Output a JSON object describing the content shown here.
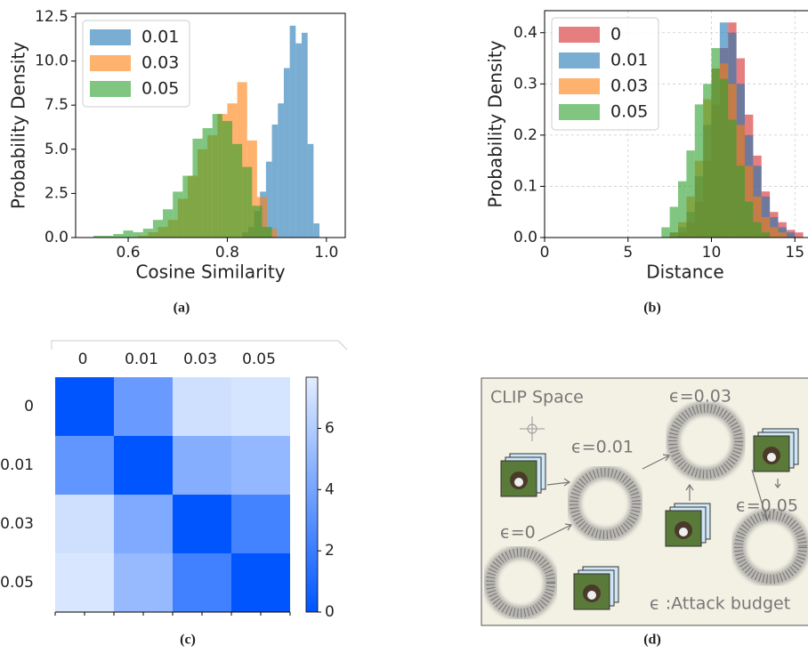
{
  "chart_data": [
    {
      "type": "histogram",
      "caption": "(a)",
      "xlabel": "Cosine Similarity",
      "ylabel": "Probability Density",
      "xlim": [
        0.494,
        1.038
      ],
      "ylim": [
        0,
        12.7
      ],
      "xticks": [
        0.6,
        0.8,
        {
          "value": 1.0,
          "label": "1.0"
        }
      ],
      "yticks": [
        {
          "value": 0,
          "label": "0.0"
        },
        2.5,
        {
          "value": 5,
          "label": "5.0"
        },
        7.5,
        {
          "value": 10,
          "label": "10.0"
        },
        12.5
      ],
      "grid": false,
      "legend": "upper left",
      "opacity": 0.6,
      "series": [
        {
          "name": "0.01",
          "color": "#1f77b4",
          "bins": [
            0.83,
            0.842,
            0.854,
            0.866,
            0.878,
            0.89,
            0.902,
            0.914,
            0.926,
            0.938,
            0.95,
            0.962,
            0.974,
            0.986
          ],
          "values": [
            0.3,
            0.6,
            1.5,
            2.6,
            4.3,
            6.4,
            7.6,
            9.6,
            12.0,
            11.0,
            11.6,
            5.3,
            0.8
          ]
        },
        {
          "name": "0.03",
          "color": "#ff7f0e",
          "bins": [
            0.62,
            0.64,
            0.66,
            0.68,
            0.7,
            0.72,
            0.74,
            0.76,
            0.78,
            0.8,
            0.82,
            0.84,
            0.86,
            0.88,
            0.9
          ],
          "values": [
            0.1,
            0.3,
            0.6,
            1.0,
            2.2,
            3.5,
            5.0,
            5.8,
            7.0,
            7.6,
            8.8,
            5.5,
            2.3,
            0.5
          ]
        },
        {
          "name": "0.05",
          "color": "#2ca02c",
          "bins": [
            0.53,
            0.55,
            0.57,
            0.59,
            0.61,
            0.63,
            0.65,
            0.67,
            0.69,
            0.71,
            0.73,
            0.75,
            0.77,
            0.79,
            0.81,
            0.83,
            0.85,
            0.87,
            0.89
          ],
          "values": [
            0.1,
            0.1,
            0.2,
            0.4,
            0.3,
            0.5,
            1.0,
            1.6,
            2.6,
            3.5,
            5.6,
            6.2,
            7.0,
            6.6,
            5.3,
            4.0,
            1.8,
            0.6
          ]
        }
      ]
    },
    {
      "type": "histogram",
      "caption": "(b)",
      "xlabel": "Distance",
      "ylabel": "Probability Density",
      "xlim": [
        0,
        16
      ],
      "ylim": [
        0,
        0.443
      ],
      "xticks": [
        0,
        5,
        10,
        15
      ],
      "yticks": [
        {
          "value": 0,
          "label": "0.0"
        },
        0.1,
        0.2,
        0.3,
        0.4
      ],
      "grid": true,
      "legend": "upper left",
      "opacity": 0.6,
      "series": [
        {
          "name": "0",
          "color": "#d62728",
          "bins": [
            8,
            8.5,
            9,
            9.5,
            10,
            10.5,
            11,
            11.5,
            12,
            12.5,
            13,
            13.5,
            14,
            14.5,
            15,
            15.5
          ],
          "values": [
            0.01,
            0.03,
            0.07,
            0.15,
            0.26,
            0.37,
            0.42,
            0.35,
            0.24,
            0.16,
            0.09,
            0.05,
            0.03,
            0.015,
            0.01
          ]
        },
        {
          "name": "0.01",
          "color": "#1f77b4",
          "bins": [
            7.5,
            8,
            8.5,
            9,
            9.5,
            10,
            10.5,
            11,
            11.5,
            12,
            12.5,
            13,
            13.5,
            14,
            14.5,
            15
          ],
          "values": [
            0.01,
            0.02,
            0.05,
            0.12,
            0.22,
            0.33,
            0.42,
            0.4,
            0.3,
            0.2,
            0.14,
            0.08,
            0.04,
            0.02,
            0.01
          ]
        },
        {
          "name": "0.03",
          "color": "#ff7f0e",
          "bins": [
            7.5,
            8,
            8.5,
            9,
            9.5,
            10,
            10.5,
            11,
            11.5,
            12,
            12.5,
            13,
            13.5,
            14,
            14.5
          ],
          "values": [
            0.01,
            0.03,
            0.08,
            0.15,
            0.27,
            0.33,
            0.34,
            0.3,
            0.22,
            0.14,
            0.08,
            0.04,
            0.02,
            0.01
          ]
        },
        {
          "name": "0.05",
          "color": "#2ca02c",
          "bins": [
            7,
            7.5,
            8,
            8.5,
            9,
            9.5,
            10,
            10.5,
            11,
            11.5,
            12,
            12.5,
            13,
            13.5
          ],
          "values": [
            0.02,
            0.06,
            0.11,
            0.17,
            0.26,
            0.3,
            0.37,
            0.31,
            0.23,
            0.14,
            0.07,
            0.03,
            0.01
          ]
        }
      ]
    },
    {
      "type": "heatmap",
      "caption": "(c)",
      "x_categories": [
        "0",
        "0.01",
        "0.03",
        "0.05"
      ],
      "y_categories": [
        "0",
        "0.01",
        "0.03",
        "0.05"
      ],
      "values": [
        [
          0,
          3.5,
          7.0,
          7.2
        ],
        [
          3.3,
          0,
          4.5,
          5.0
        ],
        [
          7.0,
          4.3,
          0,
          2.3
        ],
        [
          7.3,
          5.1,
          2.2,
          0
        ]
      ],
      "clim": [
        0,
        7.67
      ],
      "cticks": [
        0,
        2,
        4,
        6
      ],
      "colors": [
        "#0055ff",
        "#e3edff"
      ]
    }
  ],
  "diagram": {
    "caption": "(d)",
    "space_label": "CLIP Space",
    "budgets": [
      "ϵ=0",
      "ϵ=0.01",
      "ϵ=0.03",
      "ϵ=0.05"
    ],
    "legend": "ϵ :Attack budget"
  }
}
